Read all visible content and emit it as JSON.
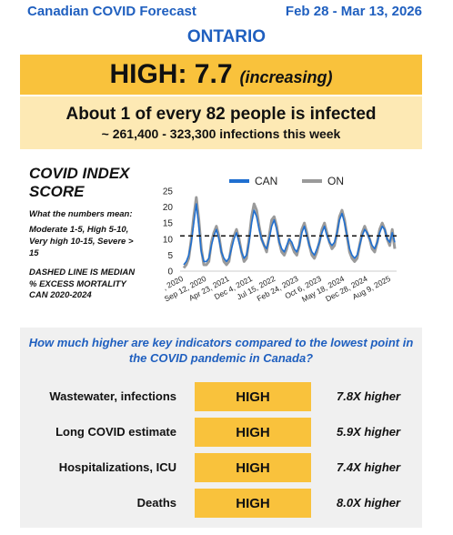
{
  "header": {
    "title": "Canadian COVID Forecast",
    "date_range": "Feb 28 - Mar 13, 2026",
    "province": "ONTARIO"
  },
  "level": {
    "text": "HIGH: 7.7",
    "trend": "(increasing)",
    "value": 7.7
  },
  "infections": {
    "ratio_text": "About 1 of every 82 people is infected",
    "range_text": "~ 261,400 - 323,300 infections this week"
  },
  "index_score": {
    "title_line1": "COVID INDEX",
    "title_line2": "SCORE",
    "meaning_heading": "What the numbers mean:",
    "meaning_text": "Moderate 1-5, High 5-10, Very high 10-15, Severe > 15",
    "dashed_text": "DASHED LINE IS MEDIAN % EXCESS MORTALITY CAN 2020-2024"
  },
  "chart_data": {
    "type": "line",
    "ylim": [
      0,
      25
    ],
    "yticks": [
      "0",
      "5",
      "10",
      "15",
      "20",
      "25"
    ],
    "x_tick_labels": [
      ", 2020",
      "Sep 12, 2020",
      "Apr 23, 2021",
      "Dec 4, 2021",
      "Jul 15, 2022",
      "Feb 24, 2023",
      "Oct 6, 2023",
      "May 18, 2024",
      "Dec 28, 2024",
      "Aug 9, 2025"
    ],
    "reference_line": 11,
    "legend_position": "top",
    "series": [
      {
        "name": "CAN",
        "color": "#1f6fd0",
        "values": [
          2,
          3,
          5,
          9,
          15,
          21,
          14,
          6,
          3,
          3,
          4,
          8,
          11,
          13,
          10,
          6,
          4,
          3,
          4,
          7,
          10,
          12,
          9,
          6,
          4,
          5,
          9,
          15,
          19,
          17,
          13,
          10,
          8,
          7,
          10,
          14,
          16,
          13,
          9,
          7,
          6,
          8,
          10,
          9,
          7,
          6,
          8,
          12,
          14,
          11,
          8,
          6,
          5,
          7,
          9,
          12,
          14,
          11,
          9,
          8,
          9,
          12,
          16,
          18,
          15,
          11,
          7,
          5,
          4,
          5,
          8,
          11,
          13,
          12,
          10,
          8,
          7,
          9,
          12,
          14,
          13,
          10,
          9,
          12,
          9
        ]
      },
      {
        "name": "ON",
        "color": "#9a9a9a",
        "values": [
          1,
          2,
          4,
          10,
          17,
          23,
          16,
          7,
          2,
          2,
          3,
          9,
          12,
          14,
          11,
          6,
          3,
          2,
          3,
          8,
          11,
          13,
          10,
          6,
          3,
          4,
          10,
          17,
          21,
          19,
          14,
          10,
          8,
          6,
          11,
          16,
          17,
          14,
          9,
          6,
          5,
          7,
          10,
          8,
          6,
          5,
          8,
          13,
          15,
          12,
          8,
          5,
          4,
          6,
          9,
          13,
          15,
          12,
          9,
          7,
          8,
          12,
          17,
          19,
          16,
          11,
          6,
          4,
          3,
          4,
          8,
          12,
          14,
          12,
          10,
          7,
          6,
          9,
          13,
          15,
          13,
          10,
          8,
          13,
          7
        ]
      }
    ]
  },
  "indicators": {
    "question": "How much higher are key indicators compared to the lowest point in the COVID pandemic in Canada?",
    "rows": [
      {
        "label": "Wastewater, infections",
        "level": "HIGH",
        "multiple": "7.8X higher"
      },
      {
        "label": "Long COVID estimate",
        "level": "HIGH",
        "multiple": "5.9X higher"
      },
      {
        "label": "Hospitalizations, ICU",
        "level": "HIGH",
        "multiple": "7.4X higher"
      },
      {
        "label": "Deaths",
        "level": "HIGH",
        "multiple": "8.0X higher"
      }
    ]
  }
}
